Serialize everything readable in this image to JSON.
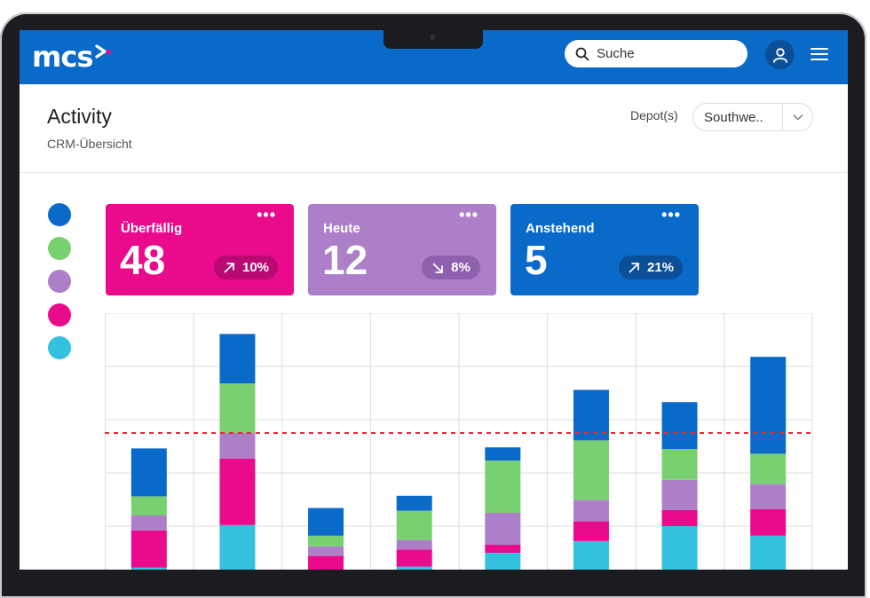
{
  "header": {
    "search_placeholder": "Suche",
    "page_title": "Activity",
    "page_subtitle": "CRM-Übersicht",
    "depot_label": "Depot(s)",
    "depot_value": "Southwe.."
  },
  "icons": [
    "search-icon",
    "user-icon",
    "menu-icon",
    "chevron-down-icon",
    "more-icon",
    "arrow-up-right-icon",
    "arrow-down-right-icon"
  ],
  "colors": {
    "brand_blue": "#0a6ac9",
    "magenta": "#ea0a8c",
    "green": "#79d070",
    "purple": "#ad7fc9",
    "blue": "#0a6ac9",
    "cyan": "#33c1dd",
    "threshold": "#e62b36"
  },
  "legend": [
    {
      "color": "#0a6ac9"
    },
    {
      "color": "#79d070"
    },
    {
      "color": "#ad7fc9"
    },
    {
      "color": "#ea0a8c"
    },
    {
      "color": "#33c1dd"
    }
  ],
  "cards": [
    {
      "label": "Überfällig",
      "value": "48",
      "change": "10%",
      "direction": "up",
      "color": "#ea0a8c"
    },
    {
      "label": "Heute",
      "value": "12",
      "change": "8%",
      "direction": "down",
      "color": "#ad7fc9"
    },
    {
      "label": "Anstehend",
      "value": "5",
      "change": "21%",
      "direction": "up",
      "color": "#0a6ac9"
    }
  ],
  "chart_data": {
    "type": "bar",
    "stacked": true,
    "grid": true,
    "ylim": [
      0,
      6
    ],
    "threshold": 2.75,
    "categories": [
      "",
      "",
      "",
      "",
      "",
      "",
      "",
      ""
    ],
    "series": [
      {
        "color": "#33c1dd",
        "values": [
          0.22,
          1.02,
          0.02,
          0.24,
          0.5,
          0.72,
          1.0,
          0.82
        ]
      },
      {
        "color": "#ea0a8c",
        "values": [
          0.7,
          1.25,
          0.42,
          0.32,
          0.15,
          0.37,
          0.3,
          0.5
        ]
      },
      {
        "color": "#ad7fc9",
        "values": [
          0.28,
          0.48,
          0.18,
          0.18,
          0.6,
          0.4,
          0.57,
          0.47
        ]
      },
      {
        "color": "#79d070",
        "values": [
          0.36,
          0.93,
          0.2,
          0.55,
          0.98,
          1.12,
          0.58,
          0.57
        ]
      },
      {
        "color": "#0a6ac9",
        "values": [
          0.9,
          0.93,
          0.52,
          0.28,
          0.25,
          0.95,
          0.88,
          1.82
        ]
      }
    ]
  }
}
